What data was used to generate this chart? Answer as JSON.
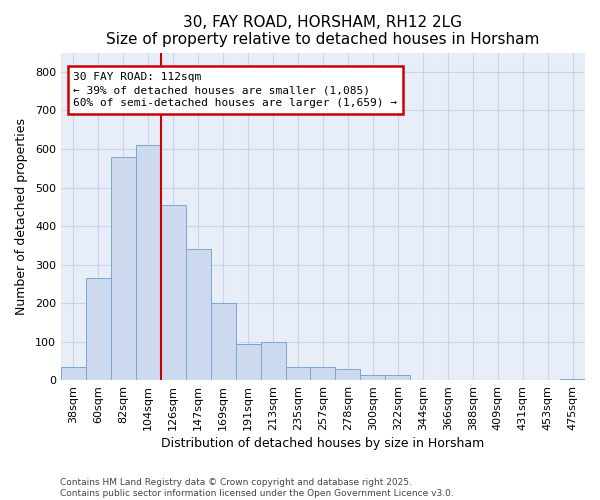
{
  "title1": "30, FAY ROAD, HORSHAM, RH12 2LG",
  "title2": "Size of property relative to detached houses in Horsham",
  "xlabel": "Distribution of detached houses by size in Horsham",
  "ylabel": "Number of detached properties",
  "categories": [
    "38sqm",
    "60sqm",
    "82sqm",
    "104sqm",
    "126sqm",
    "147sqm",
    "169sqm",
    "191sqm",
    "213sqm",
    "235sqm",
    "257sqm",
    "278sqm",
    "300sqm",
    "322sqm",
    "344sqm",
    "366sqm",
    "388sqm",
    "409sqm",
    "431sqm",
    "453sqm",
    "475sqm"
  ],
  "values": [
    35,
    265,
    580,
    610,
    455,
    340,
    200,
    93,
    100,
    35,
    33,
    30,
    12,
    12,
    0,
    0,
    0,
    0,
    0,
    0,
    3
  ],
  "bar_color": "#ccd9ee",
  "bar_edge_color": "#7ba7d4",
  "vline_x": 3.5,
  "vline_color": "#cc0000",
  "annotation_line1": "30 FAY ROAD: 112sqm",
  "annotation_line2": "← 39% of detached houses are smaller (1,085)",
  "annotation_line3": "60% of semi-detached houses are larger (1,659) →",
  "annotation_box_facecolor": "#ffffff",
  "annotation_box_edgecolor": "#cc0000",
  "ylim": [
    0,
    850
  ],
  "yticks": [
    0,
    100,
    200,
    300,
    400,
    500,
    600,
    700,
    800
  ],
  "footer1": "Contains HM Land Registry data © Crown copyright and database right 2025.",
  "footer2": "Contains public sector information licensed under the Open Government Licence v3.0.",
  "fig_bg": "#ffffff",
  "plot_bg": "#e8eef8",
  "grid_color": "#c8d4e8",
  "title_fontsize": 11,
  "subtitle_fontsize": 10,
  "axis_label_fontsize": 9,
  "tick_fontsize": 8,
  "ann_fontsize": 8,
  "footer_fontsize": 6.5
}
